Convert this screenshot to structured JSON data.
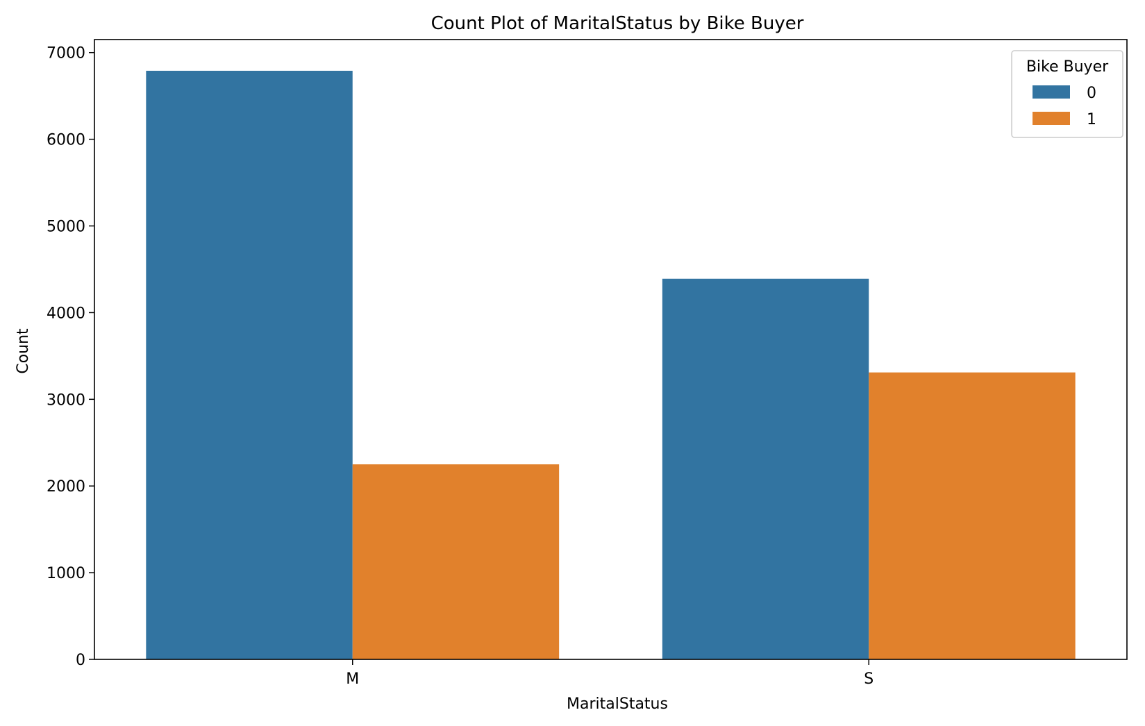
{
  "chart_data": {
    "type": "bar",
    "title": "Count Plot of MaritalStatus by Bike Buyer",
    "xlabel": "MaritalStatus",
    "ylabel": "Count",
    "categories": [
      "M",
      "S"
    ],
    "ylim": [
      0,
      7150
    ],
    "yticks": [
      0,
      1000,
      2000,
      3000,
      4000,
      5000,
      6000,
      7000
    ],
    "grid": false,
    "legend": {
      "title": "Bike Buyer",
      "placement": "top-right"
    },
    "series": [
      {
        "name": "0",
        "values": [
          6790,
          4390
        ],
        "color": "#3274a1"
      },
      {
        "name": "1",
        "values": [
          2250,
          3310
        ],
        "color": "#e1812c"
      }
    ]
  }
}
